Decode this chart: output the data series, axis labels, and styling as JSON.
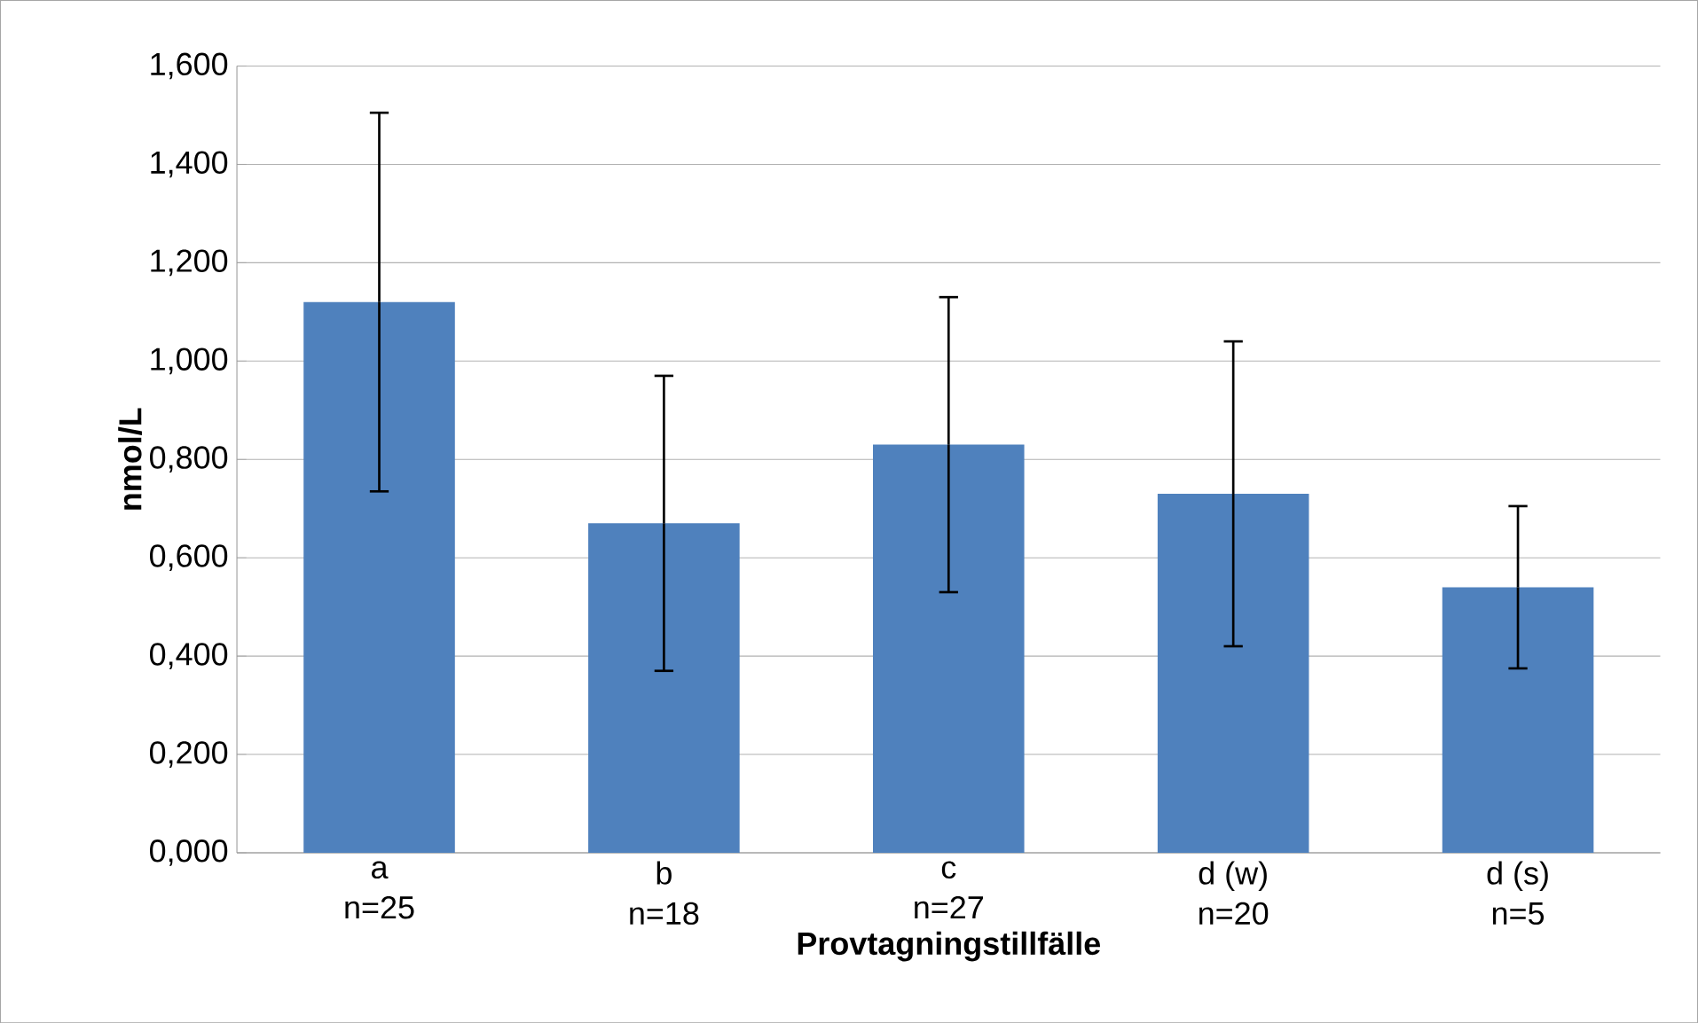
{
  "chart_data": {
    "type": "bar",
    "xlabel": "Provtagningstillfälle",
    "ylabel": "nmol/L",
    "categories": [
      "a\nn=25",
      "b\nn=18",
      "c\nn=27",
      "d (w)\nn=20",
      "d (s)\nn=5"
    ],
    "values": [
      1.12,
      0.67,
      0.83,
      0.73,
      0.54
    ],
    "errors": [
      0.385,
      0.3,
      0.3,
      0.31,
      0.165
    ],
    "color": "#4f81bd",
    "ylim": [
      0,
      1.6
    ],
    "yticks": [
      {
        "value": 0,
        "label": "0,000"
      },
      {
        "value": 0.2,
        "label": "0,200"
      },
      {
        "value": 0.4,
        "label": "0,400"
      },
      {
        "value": 0.6,
        "label": "0,600"
      },
      {
        "value": 0.8,
        "label": "0,800"
      },
      {
        "value": 1.0,
        "label": "1,000"
      },
      {
        "value": 1.2,
        "label": "1,200"
      },
      {
        "value": 1.4,
        "label": "1,400"
      },
      {
        "value": 1.6,
        "label": "1,600"
      }
    ],
    "grid": "y"
  }
}
